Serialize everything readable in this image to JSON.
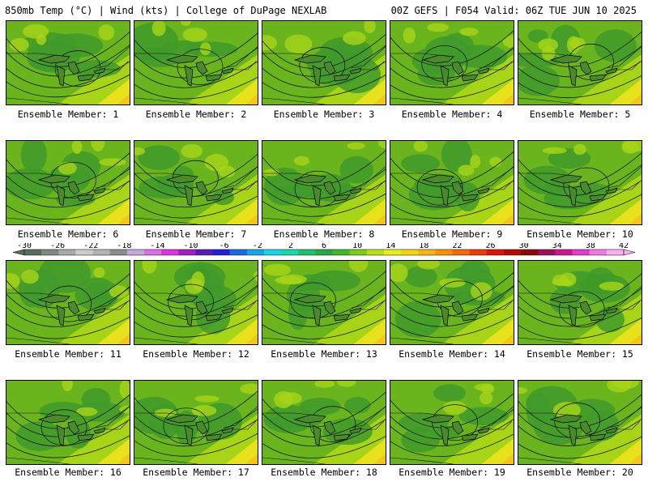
{
  "header": {
    "left": "850mb Temp (°C) | Wind (kts) | College of DuPage NEXLAB",
    "right": "00Z GEFS | F054 Valid: 06Z TUE JUN 10 2025"
  },
  "panels": [
    {
      "label": "Ensemble Member: 1"
    },
    {
      "label": "Ensemble Member: 2"
    },
    {
      "label": "Ensemble Member: 3"
    },
    {
      "label": "Ensemble Member: 4"
    },
    {
      "label": "Ensemble Member: 5"
    },
    {
      "label": "Ensemble Member: 6"
    },
    {
      "label": "Ensemble Member: 7"
    },
    {
      "label": "Ensemble Member: 8"
    },
    {
      "label": "Ensemble Member: 9"
    },
    {
      "label": "Ensemble Member: 10"
    },
    {
      "label": "Ensemble Member: 11"
    },
    {
      "label": "Ensemble Member: 12"
    },
    {
      "label": "Ensemble Member: 13"
    },
    {
      "label": "Ensemble Member: 14"
    },
    {
      "label": "Ensemble Member: 15"
    },
    {
      "label": "Ensemble Member: 16"
    },
    {
      "label": "Ensemble Member: 17"
    },
    {
      "label": "Ensemble Member: 18"
    },
    {
      "label": "Ensemble Member: 19"
    },
    {
      "label": "Ensemble Member: 20"
    }
  ],
  "colorbar": {
    "ticks": [
      "-30",
      "-26",
      "-22",
      "-18",
      "-14",
      "-10",
      "-6",
      "-2",
      "2",
      "6",
      "10",
      "14",
      "18",
      "22",
      "26",
      "30",
      "34",
      "38",
      "42"
    ],
    "colors": [
      "#5a6e5f",
      "#7f8a84",
      "#a6aba8",
      "#cccccc",
      "#b4b4b4",
      "#8c8c8c",
      "#c7a7e0",
      "#d971e0",
      "#e033e0",
      "#a020c0",
      "#5a1ab8",
      "#2222d0",
      "#1b6ae0",
      "#19a6e6",
      "#18d4e6",
      "#16d9b0",
      "#20c070",
      "#2aa64a",
      "#44b52c",
      "#7ccc1c",
      "#b8e018",
      "#e8ee18",
      "#f6d414",
      "#f8b410",
      "#f8900c",
      "#f26a0c",
      "#e83a0c",
      "#d8180c",
      "#b40a0a",
      "#8a0808",
      "#a0105a",
      "#c81894",
      "#e040c8",
      "#f07ae0",
      "#f8b0f0"
    ]
  },
  "colors": {
    "lake": "#4a8a2a",
    "field_low": "#3f9a2a",
    "field_mid": "#6ab41e",
    "field_high": "#a8d418",
    "field_warm": "#e8e21c",
    "field_hot": "#f4c61a"
  }
}
